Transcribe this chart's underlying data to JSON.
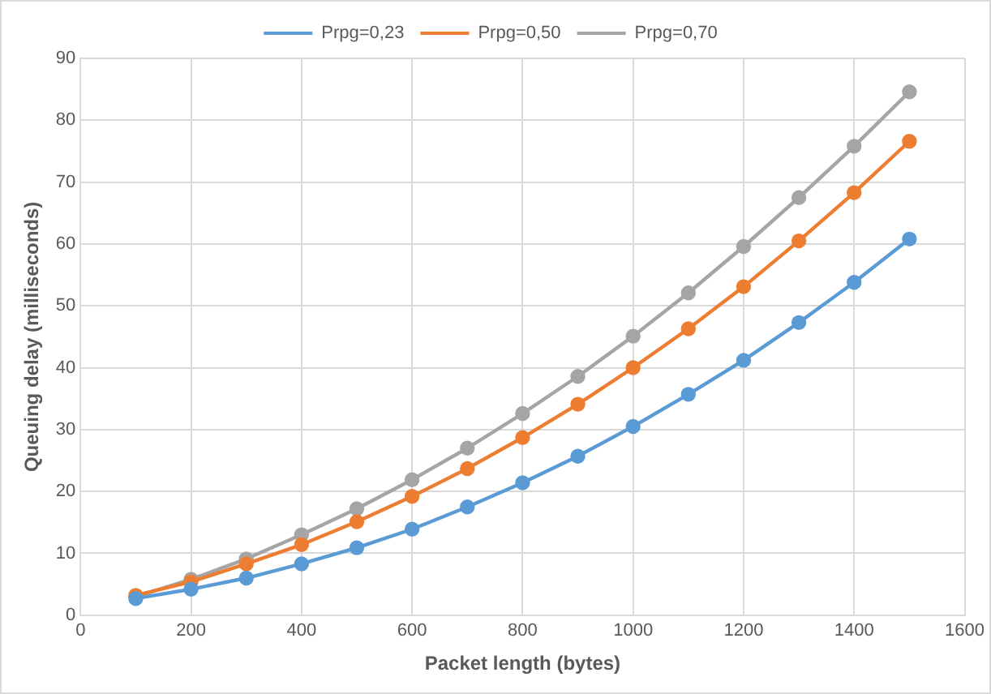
{
  "chart_data": {
    "type": "line",
    "xlabel": "Packet length (bytes)",
    "ylabel": "Queuing delay (milliseconds)",
    "x": [
      100,
      200,
      300,
      400,
      500,
      600,
      700,
      800,
      900,
      1000,
      1100,
      1200,
      1300,
      1400,
      1500
    ],
    "series": [
      {
        "name": "Prpg=0,23",
        "color": "#5b9bd5",
        "values": [
          2.7,
          4.2,
          6.0,
          8.3,
          10.9,
          13.9,
          17.5,
          21.4,
          25.7,
          30.5,
          35.7,
          41.2,
          47.3,
          53.8,
          60.8
        ]
      },
      {
        "name": "Prpg=0,50",
        "color": "#ed7d31",
        "values": [
          3.2,
          5.4,
          8.3,
          11.4,
          15.1,
          19.2,
          23.7,
          28.7,
          34.1,
          40.0,
          46.3,
          53.1,
          60.5,
          68.3,
          76.6
        ]
      },
      {
        "name": "Prpg=0,70",
        "color": "#a5a5a5",
        "values": [
          3.0,
          5.8,
          9.1,
          13.0,
          17.2,
          21.9,
          27.0,
          32.6,
          38.6,
          45.1,
          52.1,
          59.6,
          67.5,
          75.8,
          84.6
        ]
      }
    ],
    "xlim": [
      0,
      1600
    ],
    "xticks": [
      0,
      200,
      400,
      600,
      800,
      1000,
      1200,
      1400,
      1600
    ],
    "ylim": [
      0,
      90
    ],
    "yticks": [
      0,
      10,
      20,
      30,
      40,
      50,
      60,
      70,
      80,
      90
    ],
    "grid": true,
    "legend": "top",
    "marker": "circle",
    "line_style": "solid"
  }
}
